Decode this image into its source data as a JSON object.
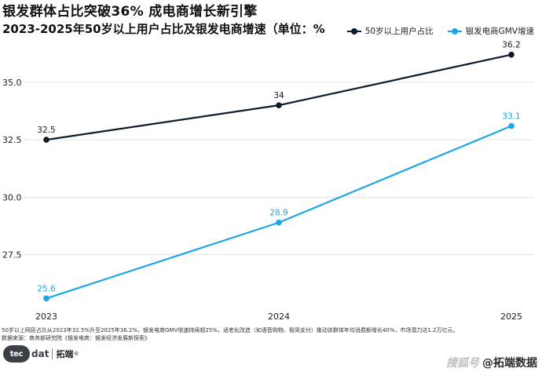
{
  "header": {
    "title": "银发群体占比突破36%  成电商增长新引擎",
    "subtitle": "2023-2025年50岁以上用户占比及银发电商增速（单位：%"
  },
  "legend": [
    {
      "label": "50岁以上用户占比",
      "color": "#0d1b2a"
    },
    {
      "label": "银发电商GMV增速",
      "color": "#1aa7e8"
    }
  ],
  "chart_data": {
    "type": "line",
    "x": [
      "2023",
      "2024",
      "2025"
    ],
    "series": [
      {
        "name": "50岁以上用户占比",
        "values": [
          32.5,
          34,
          36.2
        ],
        "labels": [
          "32.5",
          "34",
          "36.2"
        ],
        "color": "#0d1b2a"
      },
      {
        "name": "银发电商GMV增速",
        "values": [
          25.6,
          28.9,
          33.1
        ],
        "labels": [
          "25.6",
          "28.9",
          "33.1"
        ],
        "color": "#1aa7e8"
      }
    ],
    "yticks": [
      27.5,
      30.0,
      32.5,
      35.0
    ],
    "ytick_labels": [
      "27.5",
      "30.0",
      "32.5",
      "35.0"
    ],
    "ylim": [
      25.1,
      36.7
    ],
    "grid": true,
    "legend_position": "top-right"
  },
  "footer": {
    "note": "50岁以上网民占比从2023年32.5%升至2025年36.2%，银发电商GMV增速持续超25%，适老化改造（如语音购物、极简支付）推动该群体年均消费额增长40%，市场潜力达1.2万亿元。",
    "source": "数据来源：商务部研究院《银发电商：银发经济发展新探索》"
  },
  "brand": {
    "badge": "tec",
    "dat": "dat",
    "name": "拓端",
    "mark": "®"
  },
  "watermark": {
    "logo": "搜狐号",
    "text": "@拓端数据"
  }
}
